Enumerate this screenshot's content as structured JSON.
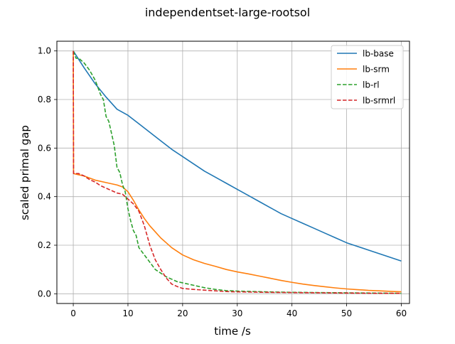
{
  "chart_data": {
    "type": "line",
    "title": "independentset-large-rootsol",
    "xlabel": "time /s",
    "ylabel": "scaled primal gap",
    "xlim": [
      -3,
      61.5
    ],
    "ylim": [
      -0.04,
      1.04
    ],
    "xticks": [
      0,
      10,
      20,
      30,
      40,
      50,
      60
    ],
    "yticks": [
      0.0,
      0.2,
      0.4,
      0.6,
      0.8,
      1.0
    ],
    "xtick_labels": [
      "0",
      "10",
      "20",
      "30",
      "40",
      "50",
      "60"
    ],
    "ytick_labels": [
      "0.0",
      "0.2",
      "0.4",
      "0.6",
      "0.8",
      "1.0"
    ],
    "grid": true,
    "legend_position": "top-right",
    "series": [
      {
        "name": "lb-base",
        "color": "#1f77b4",
        "dash": "solid",
        "points": [
          [
            0,
            1.0
          ],
          [
            2,
            0.93
          ],
          [
            4,
            0.865
          ],
          [
            6,
            0.81
          ],
          [
            8,
            0.76
          ],
          [
            10,
            0.735
          ],
          [
            12,
            0.7
          ],
          [
            14,
            0.665
          ],
          [
            16,
            0.63
          ],
          [
            18,
            0.595
          ],
          [
            20,
            0.565
          ],
          [
            22,
            0.535
          ],
          [
            24,
            0.505
          ],
          [
            26,
            0.48
          ],
          [
            28,
            0.455
          ],
          [
            30,
            0.43
          ],
          [
            32,
            0.405
          ],
          [
            34,
            0.38
          ],
          [
            36,
            0.355
          ],
          [
            38,
            0.33
          ],
          [
            40,
            0.31
          ],
          [
            42,
            0.29
          ],
          [
            44,
            0.27
          ],
          [
            46,
            0.25
          ],
          [
            48,
            0.23
          ],
          [
            50,
            0.21
          ],
          [
            52,
            0.195
          ],
          [
            54,
            0.18
          ],
          [
            56,
            0.165
          ],
          [
            58,
            0.15
          ],
          [
            60,
            0.135
          ]
        ]
      },
      {
        "name": "lb-srm",
        "color": "#ff7f0e",
        "dash": "solid",
        "points": [
          [
            0,
            1.0
          ],
          [
            0.05,
            0.495
          ],
          [
            1,
            0.49
          ],
          [
            2,
            0.485
          ],
          [
            4,
            0.468
          ],
          [
            6,
            0.458
          ],
          [
            8,
            0.448
          ],
          [
            9,
            0.44
          ],
          [
            10,
            0.42
          ],
          [
            11,
            0.385
          ],
          [
            12,
            0.345
          ],
          [
            13,
            0.31
          ],
          [
            14,
            0.28
          ],
          [
            15,
            0.255
          ],
          [
            16,
            0.23
          ],
          [
            17,
            0.21
          ],
          [
            18,
            0.19
          ],
          [
            19,
            0.175
          ],
          [
            20,
            0.16
          ],
          [
            22,
            0.14
          ],
          [
            24,
            0.125
          ],
          [
            26,
            0.113
          ],
          [
            28,
            0.1
          ],
          [
            30,
            0.09
          ],
          [
            32,
            0.082
          ],
          [
            34,
            0.073
          ],
          [
            36,
            0.064
          ],
          [
            38,
            0.055
          ],
          [
            40,
            0.047
          ],
          [
            42,
            0.04
          ],
          [
            44,
            0.034
          ],
          [
            46,
            0.029
          ],
          [
            48,
            0.024
          ],
          [
            50,
            0.02
          ],
          [
            52,
            0.017
          ],
          [
            54,
            0.014
          ],
          [
            56,
            0.012
          ],
          [
            58,
            0.01
          ],
          [
            60,
            0.008
          ]
        ]
      },
      {
        "name": "lb-rl",
        "color": "#2ca02c",
        "dash": "dashed",
        "points": [
          [
            0,
            1.0
          ],
          [
            0.5,
            0.97
          ],
          [
            1,
            0.97
          ],
          [
            2,
            0.95
          ],
          [
            3,
            0.92
          ],
          [
            4,
            0.88
          ],
          [
            4.5,
            0.85
          ],
          [
            5,
            0.82
          ],
          [
            5.5,
            0.8
          ],
          [
            6,
            0.73
          ],
          [
            6.5,
            0.71
          ],
          [
            7,
            0.66
          ],
          [
            7.5,
            0.61
          ],
          [
            8,
            0.52
          ],
          [
            8.5,
            0.5
          ],
          [
            9,
            0.45
          ],
          [
            9.5,
            0.42
          ],
          [
            10,
            0.35
          ],
          [
            10.5,
            0.3
          ],
          [
            11,
            0.26
          ],
          [
            11.5,
            0.24
          ],
          [
            12,
            0.19
          ],
          [
            13,
            0.16
          ],
          [
            14,
            0.13
          ],
          [
            15,
            0.1
          ],
          [
            16,
            0.085
          ],
          [
            17,
            0.07
          ],
          [
            18,
            0.06
          ],
          [
            19,
            0.05
          ],
          [
            20,
            0.045
          ],
          [
            22,
            0.035
          ],
          [
            24,
            0.025
          ],
          [
            26,
            0.018
          ],
          [
            28,
            0.013
          ],
          [
            30,
            0.011
          ],
          [
            35,
            0.008
          ],
          [
            40,
            0.006
          ],
          [
            45,
            0.005
          ],
          [
            50,
            0.004
          ],
          [
            55,
            0.003
          ],
          [
            60,
            0.002
          ]
        ]
      },
      {
        "name": "lb-srmrl",
        "color": "#d62728",
        "dash": "dashed",
        "points": [
          [
            0,
            1.0
          ],
          [
            0.05,
            0.495
          ],
          [
            1,
            0.495
          ],
          [
            2,
            0.485
          ],
          [
            3,
            0.47
          ],
          [
            4,
            0.46
          ],
          [
            5,
            0.445
          ],
          [
            6,
            0.435
          ],
          [
            7,
            0.425
          ],
          [
            8,
            0.415
          ],
          [
            9,
            0.41
          ],
          [
            10,
            0.39
          ],
          [
            11,
            0.37
          ],
          [
            12,
            0.34
          ],
          [
            13,
            0.28
          ],
          [
            14,
            0.2
          ],
          [
            15,
            0.14
          ],
          [
            16,
            0.1
          ],
          [
            17,
            0.065
          ],
          [
            18,
            0.04
          ],
          [
            19,
            0.03
          ],
          [
            20,
            0.022
          ],
          [
            22,
            0.018
          ],
          [
            24,
            0.015
          ],
          [
            26,
            0.012
          ],
          [
            28,
            0.009
          ],
          [
            30,
            0.008
          ],
          [
            35,
            0.006
          ],
          [
            40,
            0.005
          ],
          [
            45,
            0.004
          ],
          [
            50,
            0.003
          ],
          [
            55,
            0.002
          ],
          [
            60,
            0.002
          ]
        ]
      }
    ]
  }
}
